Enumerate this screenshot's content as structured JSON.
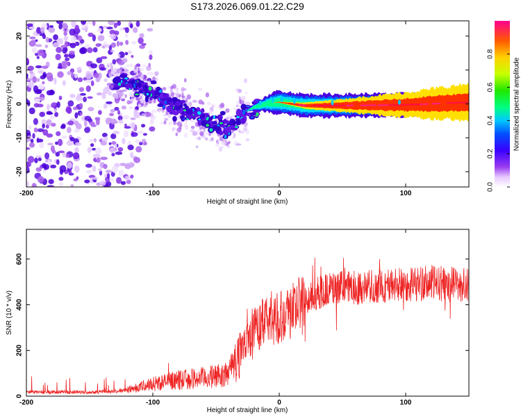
{
  "title": "S173.2026.069.01.22.C29",
  "chart_data": [
    {
      "type": "heatmap",
      "name": "spectrogram",
      "xlabel": "Height of straight line (km)",
      "ylabel": "Frequency (Hz)",
      "xlim": [
        -200,
        150
      ],
      "ylim": [
        -24.5,
        24.5
      ],
      "xticks": [
        -200,
        -100,
        0,
        100
      ],
      "yticks": [
        -20,
        -10,
        0,
        10,
        20
      ],
      "colorbar": {
        "label": "Normalized spectral amplitude",
        "range": [
          0.0,
          1.0
        ],
        "ticks": [
          "0.0",
          "0.2",
          "0.4",
          "0.6",
          "0.8"
        ],
        "tick_values": [
          0.0,
          0.2,
          0.4,
          0.6,
          0.8
        ]
      },
      "ridge": {
        "description_points_km_hz": [
          [
            -130,
            7
          ],
          [
            -110,
            5
          ],
          [
            -90,
            1
          ],
          [
            -70,
            -3
          ],
          [
            -50,
            -6
          ],
          [
            -40,
            -7
          ],
          [
            -30,
            -3
          ],
          [
            -20,
            -1
          ],
          [
            -10,
            0
          ],
          [
            0,
            0.5
          ],
          [
            20,
            -0.5
          ],
          [
            50,
            -0.5
          ],
          [
            100,
            -0.3
          ],
          [
            150,
            0.5
          ]
        ],
        "noise_region_km": [
          -200,
          -130
        ]
      }
    },
    {
      "type": "line",
      "name": "snr",
      "xlabel": "Height of straight line (km)",
      "ylabel": "SNR (10 * v/v)",
      "xlim": [
        -200,
        150
      ],
      "ylim": [
        0,
        730
      ],
      "xticks": [
        -200,
        -100,
        0,
        100
      ],
      "yticks": [
        0,
        200,
        400,
        600
      ],
      "color": "#ee2222",
      "trend_km_snr": [
        [
          -200,
          18
        ],
        [
          -150,
          18
        ],
        [
          -125,
          22
        ],
        [
          -110,
          40
        ],
        [
          -100,
          55
        ],
        [
          -80,
          70
        ],
        [
          -60,
          80
        ],
        [
          -45,
          90
        ],
        [
          -35,
          140
        ],
        [
          -28,
          230
        ],
        [
          -20,
          290
        ],
        [
          -10,
          330
        ],
        [
          0,
          350
        ],
        [
          10,
          380
        ],
        [
          20,
          410
        ],
        [
          30,
          450
        ],
        [
          40,
          470
        ],
        [
          60,
          475
        ],
        [
          80,
          480
        ],
        [
          100,
          490
        ],
        [
          120,
          495
        ],
        [
          140,
          490
        ],
        [
          150,
          485
        ]
      ]
    }
  ]
}
